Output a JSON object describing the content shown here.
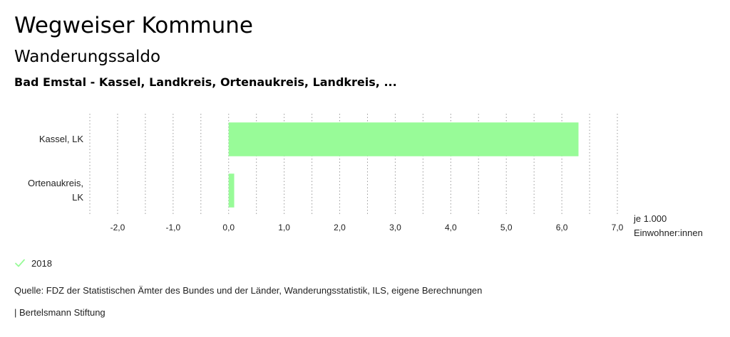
{
  "header": {
    "title": "Wegweiser Kommune",
    "subtitle": "Wanderungssaldo",
    "regions": "Bad Emstal - Kassel, Landkreis, Ortenaukreis, Landkreis, ..."
  },
  "chart_data": {
    "type": "bar",
    "orientation": "horizontal",
    "categories": [
      "Kassel, LK",
      "Ortenaukreis, LK"
    ],
    "series": [
      {
        "name": "2018",
        "values": [
          6.3,
          0.1
        ],
        "color": "#98fb98"
      }
    ],
    "xlim": [
      -2.5,
      7.0
    ],
    "xticks": [
      -2,
      -1,
      0,
      1,
      2,
      3,
      4,
      5,
      6,
      7
    ],
    "xtick_labels": [
      "-2,0",
      "-1,0",
      "0,0",
      "1,0",
      "2,0",
      "3,0",
      "4,0",
      "5,0",
      "6,0",
      "7,0"
    ],
    "xlabel": [
      "je 1.000",
      "Einwohner:innen"
    ],
    "grid": "vertical dotted",
    "legend_position": "bottom-left"
  },
  "legend": {
    "label": "2018",
    "color": "#98fb98",
    "icon": "check-icon"
  },
  "footer": {
    "source": "Quelle: FDZ der Statistischen Ämter des Bundes und der Länder, Wanderungsstatistik, ILS, eigene Berechnungen",
    "credit": "| Bertelsmann Stiftung"
  }
}
